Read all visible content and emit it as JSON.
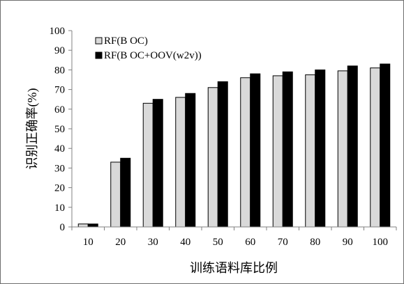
{
  "chart_data": {
    "type": "bar",
    "title": "",
    "xlabel": "训练语料库比例",
    "ylabel": "识别正确率(%)",
    "ylim": [
      0,
      100
    ],
    "yticks": [
      0,
      10,
      20,
      30,
      40,
      50,
      60,
      70,
      80,
      90,
      100
    ],
    "categories": [
      "10",
      "20",
      "30",
      "40",
      "50",
      "60",
      "70",
      "80",
      "90",
      "100"
    ],
    "series": [
      {
        "name": "RF(B OC)",
        "color": "#d9d9d9",
        "values": [
          1.5,
          33,
          63,
          66,
          71,
          76,
          77,
          77.5,
          79.5,
          81
        ]
      },
      {
        "name": "RF(B OC+OOV(w2v))",
        "color": "#000000",
        "values": [
          1.5,
          35,
          65,
          68,
          74,
          78,
          79,
          80,
          82,
          83
        ]
      }
    ],
    "grid": false,
    "legend_position": "top-left"
  }
}
